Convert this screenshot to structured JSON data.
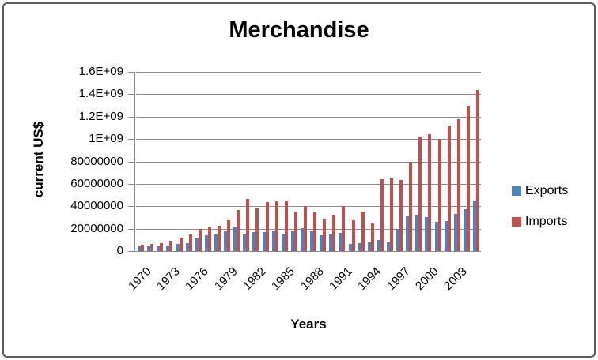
{
  "window": {
    "background": "#ffffff",
    "border_color": "#5b5b5b"
  },
  "chart_data": {
    "type": "bar",
    "title": "Merchandise",
    "xlabel": "Years",
    "ylabel": "current US$",
    "ylim": [
      0,
      1600000000
    ],
    "grid": true,
    "legend_position": "right",
    "gridline_color": "#8c8c8c",
    "y_tick_labels": [
      "1.6E+09",
      "1.4E+09",
      "1.2E+09",
      "1E+09",
      "80000000",
      "60000000",
      "40000000",
      "20000000",
      "0"
    ],
    "x_tick_labels": [
      "1970",
      "1973",
      "1976",
      "1979",
      "1982",
      "1985",
      "1988",
      "1991",
      "1994",
      "1997",
      "2000",
      "2003"
    ],
    "x_tick_interval": 3,
    "x": [
      1970,
      1971,
      1972,
      1973,
      1974,
      1975,
      1976,
      1977,
      1978,
      1979,
      1980,
      1981,
      1982,
      1983,
      1984,
      1985,
      1986,
      1987,
      1988,
      1989,
      1990,
      1991,
      1992,
      1993,
      1994,
      1995,
      1996,
      1997,
      1998,
      1999,
      2000,
      2001,
      2002,
      2003,
      2004,
      2005
    ],
    "series": [
      {
        "name": "Exports",
        "color": "#4F81BD",
        "values": [
          40000000,
          46000000,
          40000000,
          52000000,
          64000000,
          70000000,
          115000000,
          142000000,
          147000000,
          176000000,
          218000000,
          149000000,
          172000000,
          167000000,
          180000000,
          158000000,
          176000000,
          206000000,
          179000000,
          144000000,
          155000000,
          163000000,
          65000000,
          72000000,
          80000000,
          100000000,
          78000000,
          195000000,
          308000000,
          322000000,
          300000000,
          260000000,
          270000000,
          330000000,
          375000000,
          450000000
        ]
      },
      {
        "name": "Imports",
        "color": "#C0504D",
        "values": [
          55000000,
          64000000,
          72000000,
          94000000,
          122000000,
          150000000,
          200000000,
          208000000,
          228000000,
          272000000,
          368000000,
          462000000,
          382000000,
          440000000,
          447000000,
          442000000,
          355000000,
          400000000,
          343000000,
          285000000,
          325000000,
          400000000,
          278000000,
          355000000,
          245000000,
          643000000,
          658000000,
          635000000,
          792000000,
          1020000000,
          1040000000,
          1000000000,
          1120000000,
          1180000000,
          1300000000,
          1440000000
        ]
      }
    ]
  }
}
